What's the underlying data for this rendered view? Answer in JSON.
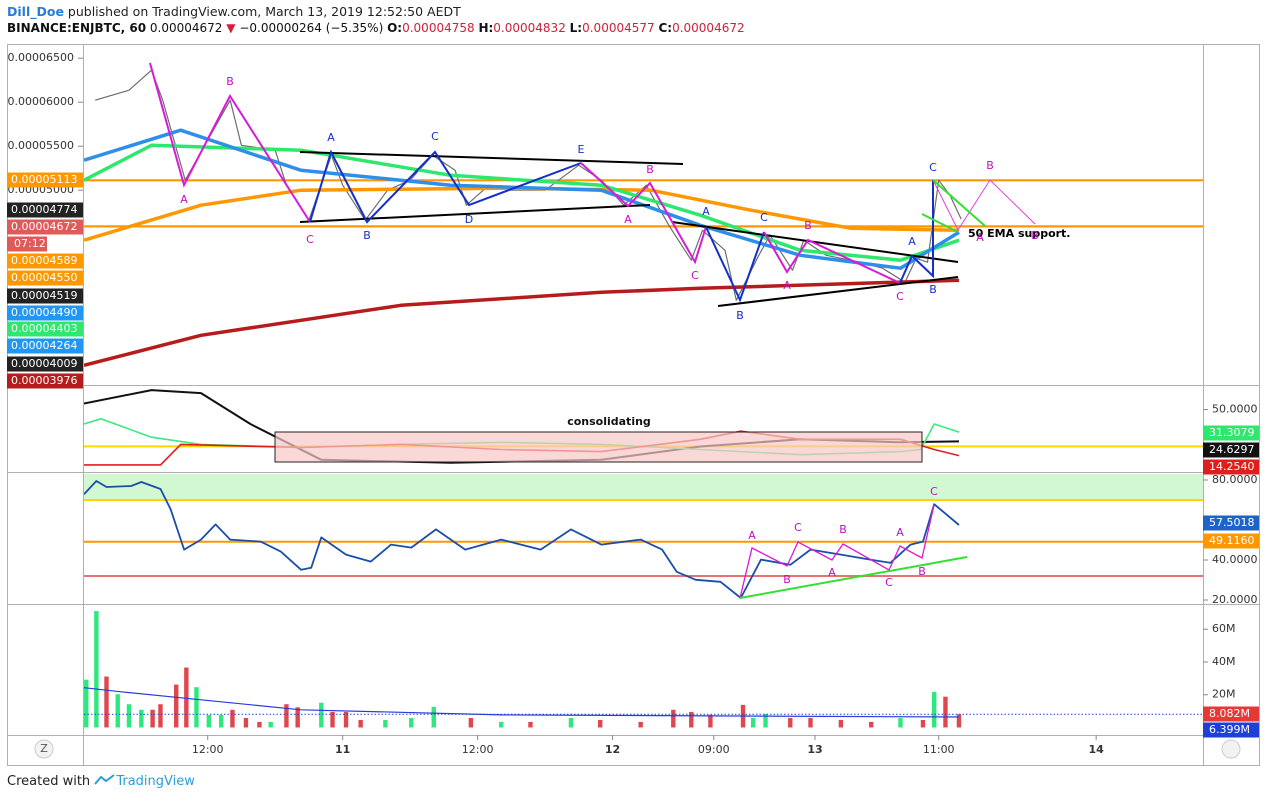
{
  "header": {
    "author": "Dill_Doe",
    "published": "published on TradingView.com, March 13, 2019 12:52:50 AEDT",
    "symbol": "BINANCE:ENJBTC, 60",
    "last": 4.672e-05,
    "arrow": "▼",
    "change": "−0.00000264 (−5.35%)",
    "ohlc": [
      {
        "label": "O:",
        "value": 4.758e-05
      },
      {
        "label": "H:",
        "value": 4.832e-05
      },
      {
        "label": "L:",
        "value": 4.577e-05
      },
      {
        "label": "C:",
        "value": 4.672e-05
      }
    ]
  },
  "footer": {
    "text": "Created with",
    "brand": "TradingView"
  },
  "axis_buttons": [
    "Z"
  ],
  "chart_data": [
    {
      "type": "line",
      "ylim": [
        2.81e-05,
        6.65e-05
      ],
      "yticks": [
        {
          "value": 6.5e-05,
          "label": "0.00006500"
        },
        {
          "value": 6e-05,
          "label": "0.00006000"
        },
        {
          "value": 5.5e-05,
          "label": "0.00005500"
        },
        {
          "value": 5e-05,
          "label": "0.00005000"
        }
      ],
      "series": [
        {
          "color": "#6d6d6d",
          "width": 1.2,
          "x": [
            1,
            4,
            6,
            7,
            9,
            11,
            13,
            14,
            17,
            18,
            20,
            22,
            23,
            25,
            27,
            29,
            31,
            33,
            34,
            36,
            38,
            41,
            44,
            46,
            48,
            50,
            52,
            54,
            55,
            57,
            58,
            60,
            61,
            63,
            64,
            66,
            69,
            71,
            73,
            74,
            75,
            76,
            77,
            78
          ],
          "values": [
            6.023e-05,
            6.136e-05,
            6.364e-05,
            6.023e-05,
            5.114e-05,
            5.568e-05,
            6.023e-05,
            5.511e-05,
            5.455e-05,
            5.057e-05,
            4.659e-05,
            5.398e-05,
            5.057e-05,
            4.659e-05,
            5e-05,
            5.114e-05,
            5.398e-05,
            5.227e-05,
            4.83e-05,
            5.057e-05,
            5e-05,
            5e-05,
            5.284e-05,
            5.114e-05,
            4.83e-05,
            5.057e-05,
            4.602e-05,
            4.205e-05,
            4.545e-05,
            4.318e-05,
            3.75e-05,
            4.261e-05,
            4.489e-05,
            4.091e-05,
            4.432e-05,
            4.261e-05,
            4.182e-05,
            4.114e-05,
            3.955e-05,
            4.227e-05,
            4.182e-05,
            5.114e-05,
            4.943e-05,
            4.672e-05
          ]
        },
        {
          "color": "#b71c1c",
          "width": 3.5,
          "x": [
            0,
            10.4,
            28.2,
            46,
            54.8,
            77.8
          ],
          "values": [
            3.011e-05,
            3.352e-05,
            3.693e-05,
            3.841e-05,
            3.886e-05,
            3.977e-05
          ]
        },
        {
          "color": "#ff9800",
          "width": 3.5,
          "x": [
            0,
            10.4,
            19.3,
            37.1,
            50.4,
            59.3,
            68.2,
            77.8
          ],
          "values": [
            4.432e-05,
            4.83e-05,
            5e-05,
            5.023e-05,
            5e-05,
            4.773e-05,
            4.568e-05,
            4.545e-05
          ]
        },
        {
          "color": "#2ee86e",
          "width": 3.5,
          "x": [
            0,
            6,
            19.3,
            32.6,
            46,
            54.8,
            63.7,
            72.6,
            77.8
          ],
          "values": [
            5.114e-05,
            5.511e-05,
            5.455e-05,
            5.17e-05,
            5.057e-05,
            4.716e-05,
            4.318e-05,
            4.205e-05,
            4.432e-05
          ]
        },
        {
          "color": "#2f8fe8",
          "width": 3.5,
          "x": [
            0,
            8.6,
            19.3,
            32.6,
            46,
            54.8,
            63.7,
            72.6,
            77.8
          ],
          "values": [
            5.341e-05,
            5.682e-05,
            5.227e-05,
            5.057e-05,
            5e-05,
            4.602e-05,
            4.261e-05,
            4.114e-05,
            4.523e-05
          ]
        }
      ],
      "hlines": [
        {
          "value": 5.113e-05,
          "color": "#ff9800"
        },
        {
          "value": 4.589e-05,
          "color": "#ff9800"
        }
      ],
      "tags": [
        5.113e-05,
        4.774e-05,
        4.672e-05,
        4.589e-05,
        {
          "value": 4.55e-05,
          "label": "0.00004550"
        },
        4.519e-05,
        {
          "value": 4.49e-05,
          "label": "0.00004490"
        },
        4.403e-05,
        4.264e-05,
        4.009e-05,
        3.976e-05
      ],
      "tag_colors": [
        "#ff9800",
        "#222222",
        "#e05a5a",
        "#ff9800",
        "#ff9800",
        "#222222",
        "#2196f3",
        "#2ee86e",
        "#2196f3",
        "#222222",
        "#b71c1c"
      ],
      "countdown": "07:12",
      "note": "50 EMA support.",
      "annotations": [
        "A",
        "B",
        "C",
        "A",
        "B",
        "C",
        "D",
        "E",
        "B",
        "A",
        "C",
        "A",
        "B",
        "C",
        "A",
        "B",
        "C",
        "A",
        "B",
        "C",
        "B",
        "A",
        "B"
      ]
    },
    {
      "type": "line",
      "ylim": [
        12.2,
        63.5
      ],
      "yticks": [
        {
          "value": 50,
          "label": "50.0000"
        }
      ],
      "series": [
        {
          "color": "#111111",
          "width": 2,
          "x": [
            0,
            6,
            10.4,
            14.8,
            21.1,
            32.6,
            46,
            54.8,
            63.7,
            72.6,
            77.8
          ],
          "values": [
            53.8,
            62.2,
            60.3,
            41,
            18.6,
            16.7,
            18.6,
            26.9,
            31.4,
            29.5,
            30.1
          ]
        },
        {
          "color": "#3ee882",
          "width": 1.6,
          "x": [
            0,
            1.5,
            6,
            10.4,
            19.3,
            28.2,
            37.1,
            46,
            54.8,
            63.7,
            72.6,
            74.4,
            75.6,
            77.8
          ],
          "values": [
            41,
            44.2,
            32.7,
            28.2,
            26.3,
            28.2,
            29.5,
            28.2,
            25,
            21.8,
            23.7,
            25,
            41,
            35.9
          ]
        },
        {
          "color": "#e01e1e",
          "width": 1.6,
          "x": [
            0,
            6.8,
            8.6,
            19.3,
            28.2,
            37.1,
            46,
            54.8,
            58.4,
            63.7,
            72.6,
            75.6,
            77.8
          ],
          "values": [
            15.4,
            15.4,
            28.2,
            26.3,
            28.2,
            25,
            23.7,
            31.4,
            36.5,
            31.4,
            31.4,
            25,
            21.2
          ]
        }
      ],
      "hlines": [
        {
          "value": 27,
          "color": "#ffd600"
        }
      ],
      "tags": [
        31.3079,
        24.6297,
        {
          "value": 14.254,
          "label": "14.2540"
        }
      ],
      "tag_colors": [
        "#2ee86e",
        "#111111",
        "#e01e1e"
      ],
      "annotations": [
        "consolidating"
      ]
    },
    {
      "type": "line",
      "ylim": [
        18.5,
        83
      ],
      "yticks": [
        {
          "value": 80,
          "label": "80.0000"
        },
        {
          "value": 40,
          "label": "40.0000"
        },
        {
          "value": 20,
          "label": "20.0000"
        }
      ],
      "series": [
        {
          "color": "#1a4fa8",
          "width": 1.8,
          "x": [
            0,
            1.1,
            2,
            4.2,
            5.1,
            6.8,
            7.7,
            8.9,
            10.4,
            11.7,
            13,
            15.7,
            17.5,
            19.3,
            20.2,
            21.1,
            23.3,
            25.5,
            27.3,
            29.1,
            31.3,
            33.9,
            37.1,
            40.6,
            43.3,
            46,
            49.5,
            51.4,
            52.7,
            54.4,
            56.6,
            58.4,
            60.2,
            62.8,
            64.6,
            67.3,
            69.9,
            71.7,
            73.5,
            74.6,
            75.6,
            77.8
          ],
          "values": [
            72.9,
            79.5,
            76.5,
            77,
            79,
            75.5,
            65.4,
            45.2,
            50.2,
            57.8,
            50.2,
            49.2,
            44.2,
            35.1,
            36.1,
            51.3,
            42.7,
            39.2,
            47.7,
            46.2,
            55.3,
            45.2,
            50.2,
            45.2,
            55.3,
            47.7,
            50.2,
            45.2,
            34.1,
            30.1,
            29.1,
            21,
            40.2,
            37.6,
            45.2,
            42.7,
            40.2,
            38.6,
            47.7,
            49.2,
            67.9,
            57.5
          ]
        }
      ],
      "hlines": [
        {
          "value": 70,
          "color": "#ffd600"
        },
        {
          "value": 49.116,
          "color": "#ff9800"
        },
        {
          "value": 32,
          "color": "#e57373"
        }
      ],
      "tags": [
        57.5018,
        {
          "value": 49.116,
          "label": "49.1160"
        }
      ],
      "tag_colors": [
        "#1e63c8",
        "#ff9800"
      ],
      "annotations": [
        "A",
        "B",
        "C",
        "A",
        "B",
        "C",
        "A",
        "B",
        "C"
      ]
    },
    {
      "type": "bar",
      "xlim": [
        0,
        99.5
      ],
      "xticks": [
        {
          "value": 11,
          "label": "12:00"
        },
        {
          "value": 23,
          "label": "11"
        },
        {
          "value": 35,
          "label": "12:00"
        },
        {
          "value": 47,
          "label": "12"
        },
        {
          "value": 56,
          "label": "09:00"
        },
        {
          "value": 65,
          "label": "13"
        },
        {
          "value": 76,
          "label": "11:00"
        },
        {
          "value": 90,
          "label": "14"
        }
      ],
      "ylim": [
        -4.6,
        74.2
      ],
      "yticks": [
        {
          "value": 20,
          "label": "20M"
        },
        {
          "value": 40,
          "label": "40M"
        },
        {
          "value": 60,
          "label": "60M"
        }
      ],
      "series": [
        {
          "color": "#2ee87e",
          "x": [
            0.2,
            1.1,
            3,
            4,
            5.1,
            10,
            11.1,
            12.2,
            16.6,
            21.1,
            26.8,
            29.1,
            31.1,
            37.1,
            43.3,
            59.5,
            60.6,
            72.6,
            75.6
          ],
          "values": [
            29.2,
            71.1,
            20.3,
            14.2,
            10.8,
            24.6,
            7.7,
            7.7,
            3.4,
            15.1,
            4.6,
            5.8,
            12.6,
            3.4,
            5.8,
            5.8,
            8.3,
            5.8,
            21.8
          ]
        },
        {
          "color": "#e0474c",
          "x": [
            2,
            6.1,
            6.8,
            8.2,
            9.1,
            13.2,
            14.4,
            15.6,
            18,
            19,
            22.1,
            23.3,
            24.6,
            34.4,
            39.7,
            45.9,
            49.5,
            52.4,
            54,
            55.7,
            58.6,
            62.8,
            64.6,
            67.3,
            70,
            74.6,
            76.6,
            77.8
          ],
          "values": [
            31.1,
            10.8,
            14.2,
            26.2,
            36.6,
            10.8,
            5.8,
            3.4,
            14.2,
            12.3,
            9.5,
            9.5,
            4.6,
            5.8,
            3.4,
            4.6,
            3.4,
            10.8,
            9.5,
            7.7,
            13.8,
            5.8,
            5.8,
            4.6,
            3.4,
            4.6,
            18.8,
            8.1
          ]
        }
      ],
      "ma": {
        "color": "#2a3bd8",
        "x": [
          0,
          3.3,
          10.4,
          19.3,
          37.1,
          77.8
        ],
        "values": [
          24.3,
          21.8,
          16.9,
          10.8,
          7.7,
          6.399
        ]
      },
      "tags": [
        {
          "value": 8.082,
          "label": "8.082M"
        },
        {
          "value": 6.399,
          "label": "6.399M"
        }
      ],
      "tag_colors": [
        "#e53935",
        "#1e40d8"
      ]
    }
  ]
}
